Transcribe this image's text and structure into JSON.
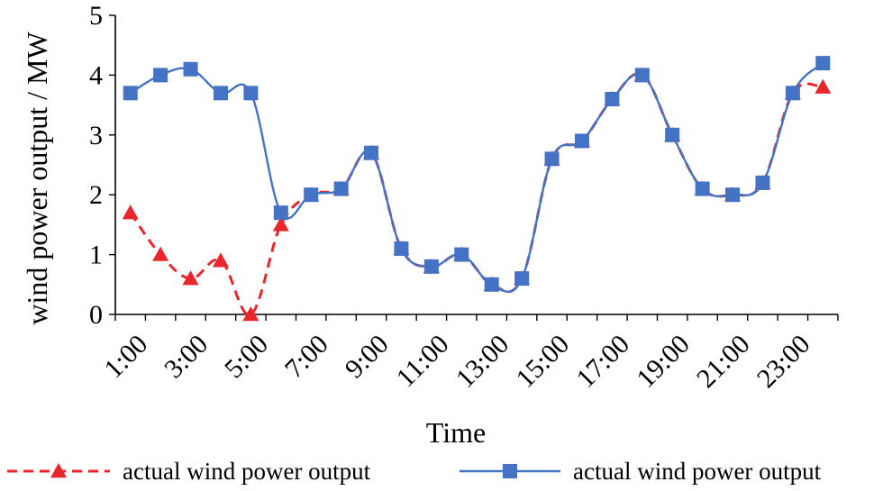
{
  "chart_data": {
    "type": "line",
    "title": "",
    "xlabel": "Time",
    "ylabel": "wind power output / MW",
    "ylim": [
      0,
      5
    ],
    "yticks": [
      "0",
      "1",
      "2",
      "3",
      "4",
      "5"
    ],
    "categories": [
      "1:00",
      "2:00",
      "3:00",
      "4:00",
      "5:00",
      "6:00",
      "7:00",
      "8:00",
      "9:00",
      "10:00",
      "11:00",
      "12:00",
      "13:00",
      "14:00",
      "15:00",
      "16:00",
      "17:00",
      "18:00",
      "19:00",
      "20:00",
      "21:00",
      "22:00",
      "23:00",
      "24:00"
    ],
    "xtick_labels": [
      "1:00",
      "3:00",
      "5:00",
      "7:00",
      "9:00",
      "11:00",
      "13:00",
      "15:00",
      "17:00",
      "19:00",
      "21:00",
      "23:00"
    ],
    "grid": false,
    "legend_position": "bottom",
    "series": [
      {
        "name": "actual wind power output",
        "color": "#e8262b",
        "line_style": "dashed",
        "marker": "triangle",
        "values": [
          1.7,
          1.0,
          0.6,
          0.9,
          0.0,
          1.5,
          2.0,
          2.1,
          2.7,
          1.1,
          0.8,
          1.0,
          0.5,
          0.6,
          2.6,
          2.9,
          3.6,
          4.0,
          3.0,
          2.1,
          2.0,
          2.2,
          3.7,
          3.8
        ]
      },
      {
        "name": "actual wind power output",
        "color": "#4472c4",
        "line_style": "solid",
        "marker": "square",
        "values": [
          3.7,
          4.0,
          4.1,
          3.7,
          3.7,
          1.7,
          2.0,
          2.1,
          2.7,
          1.1,
          0.8,
          1.0,
          0.5,
          0.6,
          2.6,
          2.9,
          3.6,
          4.0,
          3.0,
          2.1,
          2.0,
          2.2,
          3.7,
          4.2
        ]
      }
    ]
  }
}
